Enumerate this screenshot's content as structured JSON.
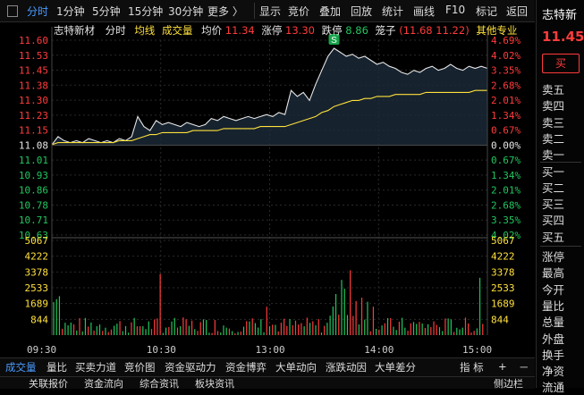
{
  "toolbar": {
    "items": [
      "分时",
      "1分钟",
      "5分钟",
      "15分钟",
      "30分钟",
      "更多 〉",
      "显示",
      "竞价",
      "叠加",
      "回放",
      "统计",
      "画线",
      "F10",
      "标记",
      "返回"
    ]
  },
  "header": {
    "stock_name": "志特新材",
    "mode": "分时",
    "avg_line": "均线",
    "volume": "成交量",
    "avg_label": "均价",
    "avg_value": "11.34",
    "limit_up_label": "涨停",
    "limit_up_value": "13.30",
    "limit_down_label": "跌停",
    "limit_down_value": "8.86",
    "cage_label": "笼子",
    "cage_value": "(11.68 11.22)",
    "other": "其他专业"
  },
  "price_axis_left": [
    "11.60",
    "11.53",
    "11.45",
    "11.38",
    "11.30",
    "11.23",
    "11.15",
    "11.08",
    "11.01",
    "10.93",
    "10.86",
    "10.78",
    "10.71",
    "10.63"
  ],
  "pct_axis_right": [
    "4.69%",
    "4.02%",
    "3.35%",
    "2.68%",
    "2.01%",
    "1.34%",
    "0.67%",
    "0.00%",
    "0.67%",
    "1.34%",
    "2.01%",
    "2.68%",
    "3.35%",
    "4.02%"
  ],
  "volume_axis": [
    "5067",
    "4222",
    "3378",
    "2533",
    "1689",
    "844"
  ],
  "time_axis": [
    "09:30",
    "10:30",
    "13:00",
    "14:00",
    "15:00"
  ],
  "marker": "S",
  "colors": {
    "up": "#ff3b3b",
    "down": "#22c55e",
    "avg": "#ffe13b",
    "price": "#e6e6e6",
    "accent": "#4a9bff"
  },
  "chart_data": {
    "type": "line",
    "x": [
      "09:30",
      "10:30",
      "13:00",
      "14:00",
      "15:00"
    ],
    "prev_close": 11.08,
    "ylim": [
      10.63,
      11.6
    ],
    "price_series": [
      11.08,
      11.12,
      11.1,
      11.09,
      11.1,
      11.09,
      11.11,
      11.1,
      11.09,
      11.1,
      11.09,
      11.11,
      11.1,
      11.12,
      11.22,
      11.17,
      11.15,
      11.2,
      11.18,
      11.19,
      11.18,
      11.17,
      11.19,
      11.18,
      11.17,
      11.18,
      11.21,
      11.2,
      11.22,
      11.21,
      11.2,
      11.21,
      11.22,
      11.21,
      11.22,
      11.23,
      11.22,
      11.24,
      11.23,
      11.35,
      11.32,
      11.34,
      11.3,
      11.38,
      11.45,
      11.52,
      11.56,
      11.54,
      11.52,
      11.53,
      11.51,
      11.52,
      11.5,
      11.48,
      11.49,
      11.47,
      11.46,
      11.44,
      11.43,
      11.45,
      11.44,
      11.46,
      11.47,
      11.45,
      11.46,
      11.48,
      11.46,
      11.45,
      11.47,
      11.46,
      11.47,
      11.46
    ],
    "avg_series": [
      11.08,
      11.09,
      11.09,
      11.09,
      11.09,
      11.09,
      11.09,
      11.09,
      11.09,
      11.09,
      11.09,
      11.1,
      11.1,
      11.1,
      11.11,
      11.12,
      11.13,
      11.13,
      11.14,
      11.14,
      11.14,
      11.14,
      11.14,
      11.15,
      11.15,
      11.15,
      11.15,
      11.15,
      11.16,
      11.16,
      11.16,
      11.16,
      11.16,
      11.16,
      11.17,
      11.17,
      11.17,
      11.17,
      11.17,
      11.18,
      11.19,
      11.2,
      11.21,
      11.22,
      11.24,
      11.25,
      11.27,
      11.28,
      11.29,
      11.3,
      11.3,
      11.31,
      11.31,
      11.32,
      11.32,
      11.32,
      11.33,
      11.33,
      11.33,
      11.33,
      11.33,
      11.34,
      11.34,
      11.34,
      11.34,
      11.34,
      11.34,
      11.34,
      11.34,
      11.35,
      11.35,
      11.35
    ],
    "volume_ylim": [
      0,
      5067
    ]
  },
  "bottom_tabs": [
    "成交量",
    "量比",
    "买卖力道",
    "竞价图",
    "资金驱动力",
    "资金博弈",
    "大单动向",
    "涨跌动因",
    "大单差分"
  ],
  "bottom_right": [
    "指 标",
    "+",
    "－"
  ],
  "bottom_tabs2": [
    "关联报价",
    "资金流向",
    "综合资讯",
    "板块资讯",
    "侧边栏"
  ],
  "right_panel": {
    "name": "志特新",
    "price": "11.45",
    "buy_button": "买",
    "asks": [
      "卖五",
      "卖四",
      "卖三",
      "卖二",
      "卖一"
    ],
    "bids": [
      "买一",
      "买二",
      "买三",
      "买四",
      "买五"
    ],
    "stats": [
      "涨停",
      "最高",
      "今开",
      "量比",
      "总量",
      "外盘",
      "换手",
      "净资",
      "流通"
    ]
  }
}
